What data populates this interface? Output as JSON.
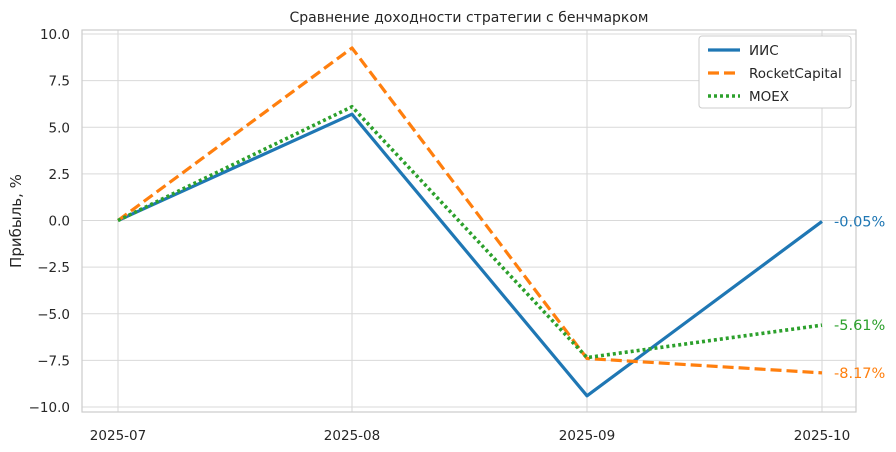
{
  "chart_data": {
    "type": "line",
    "title": "Сравнение доходности стратегии с бенчмарком",
    "xlabel": "",
    "ylabel": "Прибыль, %",
    "categories": [
      "2025-07",
      "2025-08",
      "2025-09",
      "2025-10"
    ],
    "ylim": [
      -10.4,
      10.2
    ],
    "yticks": [
      -10.0,
      -7.5,
      -5.0,
      -2.5,
      0.0,
      2.5,
      5.0,
      7.5,
      10.0
    ],
    "ytick_labels": [
      "−10.0",
      "−7.5",
      "−5.0",
      "−2.5",
      "0.0",
      "2.5",
      "5.0",
      "7.5",
      "10.0"
    ],
    "grid": true,
    "legend_position": "top-right",
    "series": [
      {
        "name": "ИИС",
        "values": [
          0.0,
          5.7,
          -9.4,
          -0.05
        ],
        "color": "#1f77b4",
        "style": "solid",
        "end_label": "-0.05%"
      },
      {
        "name": "RocketCapital",
        "values": [
          0.0,
          9.25,
          -7.4,
          -8.17
        ],
        "color": "#ff7f0e",
        "style": "dashed",
        "end_label": "-8.17%"
      },
      {
        "name": "MOEX",
        "values": [
          0.0,
          6.1,
          -7.35,
          -5.61
        ],
        "color": "#2ca02c",
        "style": "dotted",
        "end_label": "-5.61%"
      }
    ]
  }
}
